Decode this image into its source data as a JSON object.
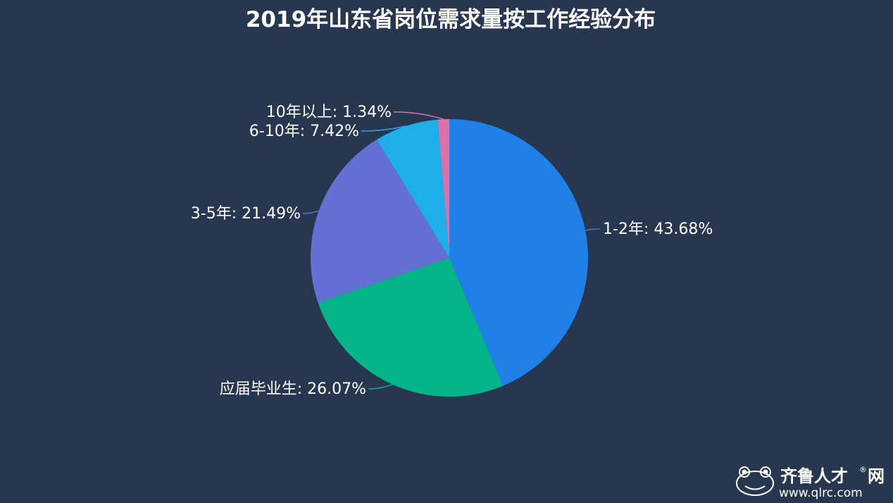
{
  "chart_data": {
    "type": "pie",
    "title": "2019年山东省岗位需求量按工作经验分布",
    "label_separator": ": ",
    "slices": [
      {
        "name": "1-2年",
        "value": 43.68,
        "label": "43.68%",
        "color": "#2080e8"
      },
      {
        "name": "应届毕业生",
        "value": 26.07,
        "label": "26.07%",
        "color": "#06b48a"
      },
      {
        "name": "3-5年",
        "value": 21.49,
        "label": "21.49%",
        "color": "#6570d4"
      },
      {
        "name": "6-10年",
        "value": 7.42,
        "label": "7.42%",
        "color": "#1eaeea"
      },
      {
        "name": "10年以上",
        "value": 1.34,
        "label": "1.34%",
        "color": "#d872a8"
      }
    ]
  },
  "watermark": {
    "name": "齐鲁人才",
    "suffix": "网",
    "registered": "®",
    "url": "www.qlrc.com",
    "icon": "frog-logo-icon"
  },
  "colors": {
    "background": "#283750",
    "text": "#ffffff"
  }
}
